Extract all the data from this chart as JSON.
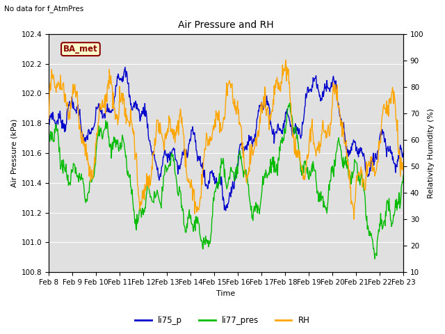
{
  "title": "Air Pressure and RH",
  "top_note": "No data for f_AtmPres",
  "xlabel": "Time",
  "ylabel_left": "Air Pressure (kPa)",
  "ylabel_right": "Relativity Humidity (%)",
  "ylim_left": [
    100.8,
    102.4
  ],
  "ylim_right": [
    10,
    100
  ],
  "yticks_left": [
    100.8,
    101.0,
    101.2,
    101.4,
    101.6,
    101.8,
    102.0,
    102.2,
    102.4
  ],
  "yticks_right": [
    10,
    20,
    30,
    40,
    50,
    60,
    70,
    80,
    90,
    100
  ],
  "color_li75": "#0000cc",
  "color_li77": "#00bb00",
  "color_rh": "#ffa500",
  "legend_labels": [
    "li75_p",
    "li77_pres",
    "RH"
  ],
  "tag_text": "BA_met",
  "tag_color": "#8b0000",
  "tag_bg": "#ffffcc",
  "bg_color": "#e0e0e0",
  "n_days": 15,
  "n_points": 720,
  "xtick_labels": [
    "Feb 8",
    "Feb 9",
    "Feb 10",
    "Feb 11",
    "Feb 12",
    "Feb 13",
    "Feb 14",
    "Feb 15",
    "Feb 16",
    "Feb 17",
    "Feb 18",
    "Feb 19",
    "Feb 20",
    "Feb 21",
    "Feb 22",
    "Feb 23"
  ]
}
